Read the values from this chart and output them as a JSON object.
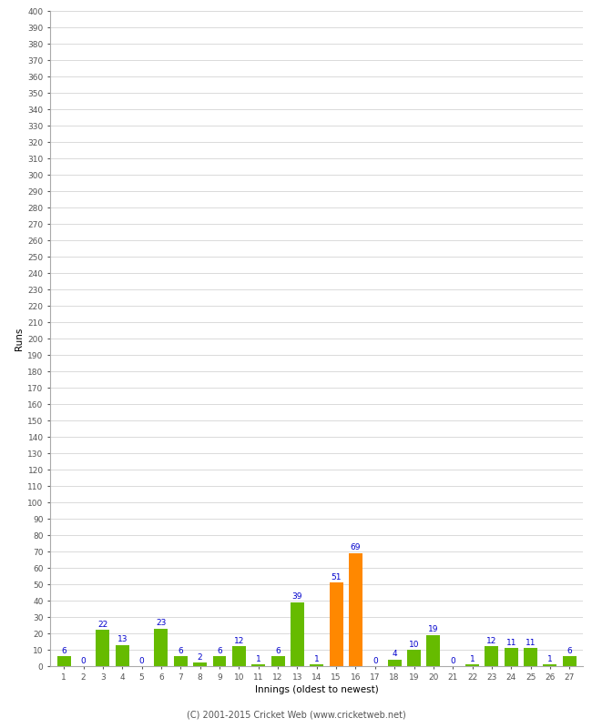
{
  "xlabel": "Innings (oldest to newest)",
  "ylabel": "Runs",
  "innings": [
    1,
    2,
    3,
    4,
    5,
    6,
    7,
    8,
    9,
    10,
    11,
    12,
    13,
    14,
    15,
    16,
    17,
    18,
    19,
    20,
    21,
    22,
    23,
    24,
    25,
    26,
    27
  ],
  "values": [
    6,
    0,
    22,
    13,
    0,
    23,
    6,
    2,
    6,
    12,
    1,
    6,
    39,
    1,
    51,
    69,
    0,
    4,
    10,
    19,
    0,
    1,
    12,
    11,
    11,
    1,
    6
  ],
  "colors": [
    "#66bb00",
    "#66bb00",
    "#66bb00",
    "#66bb00",
    "#66bb00",
    "#66bb00",
    "#66bb00",
    "#66bb00",
    "#66bb00",
    "#66bb00",
    "#66bb00",
    "#66bb00",
    "#66bb00",
    "#66bb00",
    "#ff8800",
    "#ff8800",
    "#66bb00",
    "#66bb00",
    "#66bb00",
    "#66bb00",
    "#66bb00",
    "#66bb00",
    "#66bb00",
    "#66bb00",
    "#66bb00",
    "#66bb00",
    "#66bb00"
  ],
  "ylim": [
    0,
    400
  ],
  "yticks": [
    0,
    10,
    20,
    30,
    40,
    50,
    60,
    70,
    80,
    90,
    100,
    110,
    120,
    130,
    140,
    150,
    160,
    170,
    180,
    190,
    200,
    210,
    220,
    230,
    240,
    250,
    260,
    270,
    280,
    290,
    300,
    310,
    320,
    330,
    340,
    350,
    360,
    370,
    380,
    390,
    400
  ],
  "label_color": "#0000cc",
  "footer": "(C) 2001-2015 Cricket Web (www.cricketweb.net)",
  "background_color": "#ffffff",
  "grid_color": "#cccccc"
}
